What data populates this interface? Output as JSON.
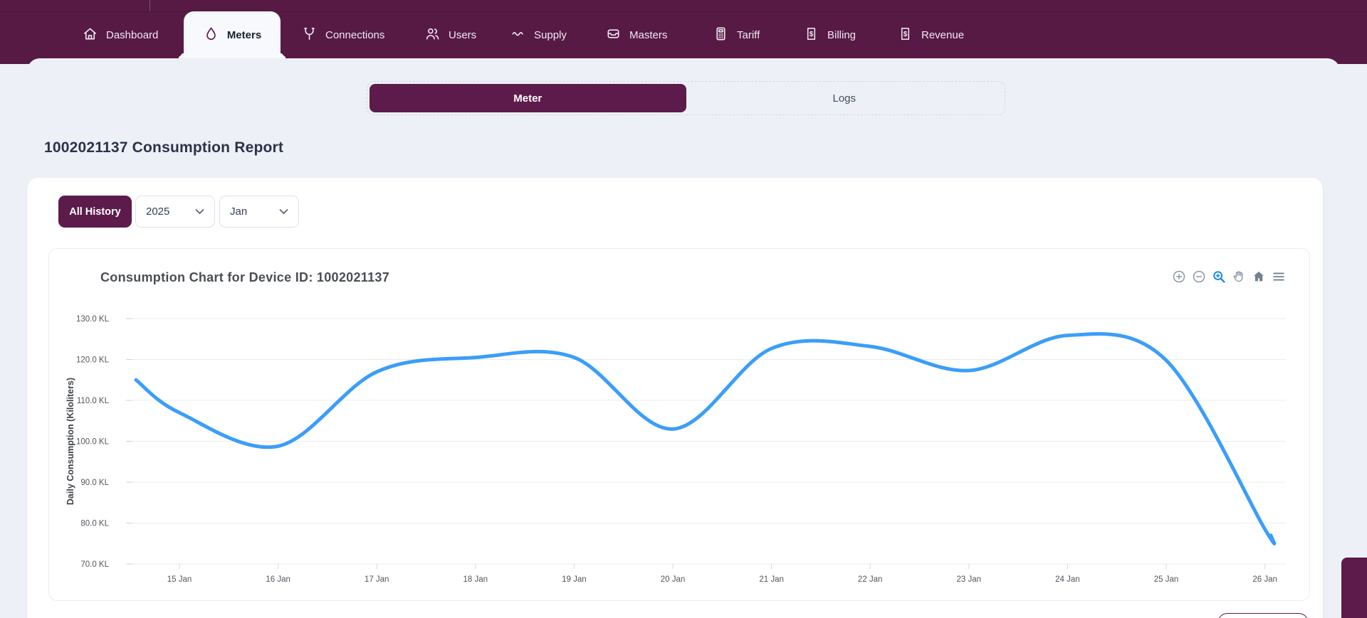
{
  "nav": {
    "items": [
      {
        "label": "Dashboard",
        "icon": "home-icon",
        "active": false
      },
      {
        "label": "Meters",
        "icon": "water-drop-icon",
        "active": true
      },
      {
        "label": "Connections",
        "icon": "pipe-branch-icon",
        "active": false
      },
      {
        "label": "Users",
        "icon": "users-icon",
        "active": false
      },
      {
        "label": "Supply",
        "icon": "wave-icon",
        "active": false
      },
      {
        "label": "Masters",
        "icon": "inbox-tray-icon",
        "active": false
      },
      {
        "label": "Tariff",
        "icon": "calculator-icon",
        "active": false
      },
      {
        "label": "Billing",
        "icon": "receipt-dollar-icon",
        "active": false
      },
      {
        "label": "Revenue",
        "icon": "receipt-dollar-icon",
        "active": false
      }
    ]
  },
  "view_toggle": {
    "selected": "Meter",
    "options": [
      {
        "label": "Meter",
        "selected": true
      },
      {
        "label": "Logs",
        "selected": false
      }
    ]
  },
  "page": {
    "title": "1002021137 Consumption Report"
  },
  "filters": {
    "all_history": "All History",
    "year": "2025",
    "month": "Jan"
  },
  "chart": {
    "title": "Consumption Chart for Device ID: 1002021137",
    "toolbar": {
      "buttons": [
        "zoom-in",
        "zoom-out",
        "box-zoom",
        "pan",
        "reset-home",
        "menu"
      ],
      "active": "box-zoom"
    }
  },
  "chart_data": {
    "type": "line",
    "title": "Consumption Chart for Device ID: 1002021137",
    "x": [
      "15 Jan",
      "16 Jan",
      "17 Jan",
      "18 Jan",
      "19 Jan",
      "20 Jan",
      "21 Jan",
      "22 Jan",
      "23 Jan",
      "24 Jan",
      "25 Jan",
      "26 Jan"
    ],
    "series": [
      {
        "name": "Daily Consumption",
        "values": [
          107,
          98.8,
          117,
          120.5,
          120.5,
          103,
          122.7,
          123.2,
          117.3,
          125.9,
          119.8,
          78.5
        ]
      }
    ],
    "clipped_edge_points": {
      "start_value": 115,
      "end_value": 77
    },
    "xlabel": "",
    "ylabel": "Daily Consumption (Kiloliters)",
    "ylim": [
      70,
      130
    ],
    "ytick_step": 10,
    "ytick_labels": [
      "130.0 KL",
      "120.0 KL",
      "110.0 KL",
      "100.0 KL",
      "90.0 KL",
      "80.0 KL",
      "70.0 KL"
    ],
    "grid": true,
    "legend": false,
    "smooth": true,
    "line_color": "#3b9ef8"
  },
  "colors": {
    "navbar": "#561a45",
    "accent_button": "#5d1b4b",
    "page_background": "#edf1f7",
    "line": "#3b9ef8",
    "toolbar_active": "#1e88e5"
  }
}
